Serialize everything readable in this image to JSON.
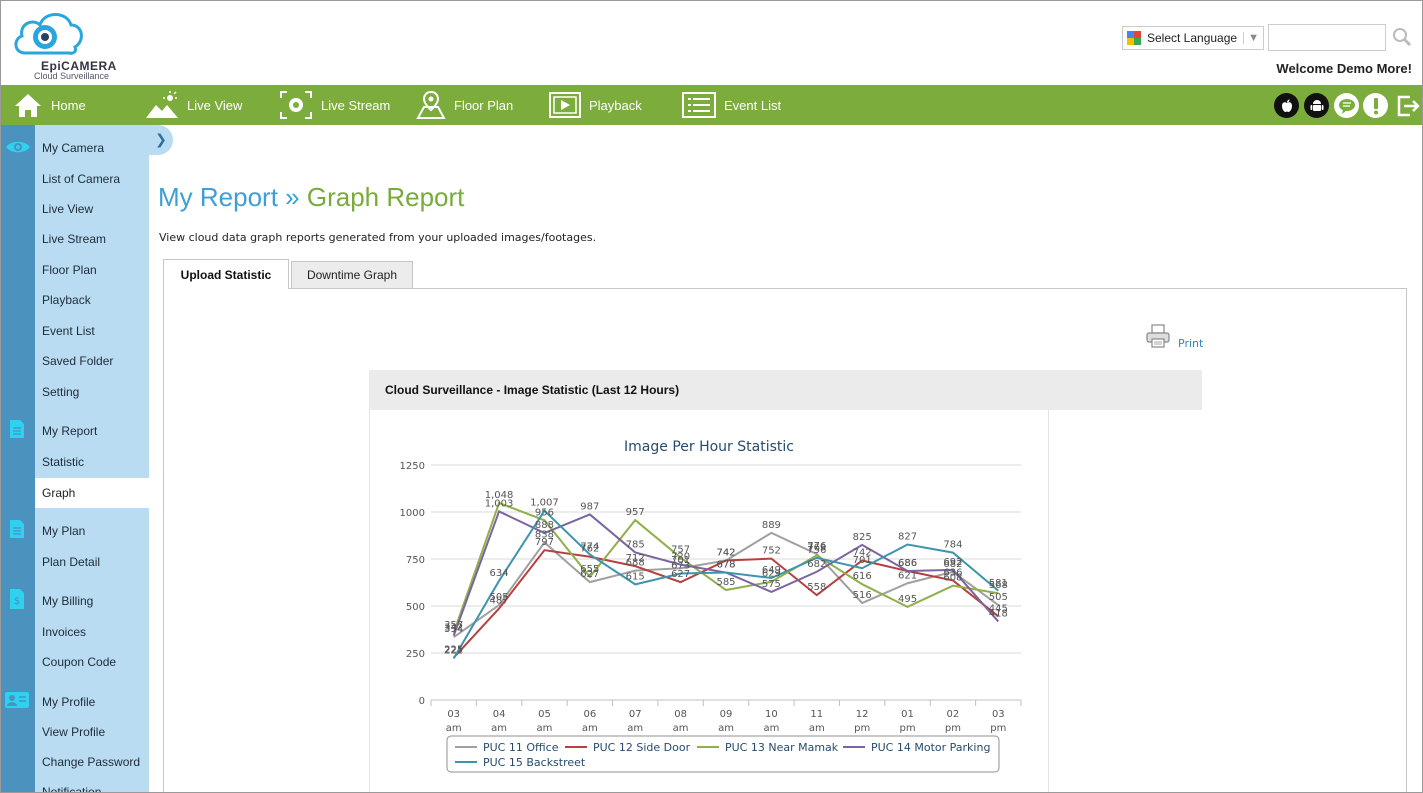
{
  "header": {
    "logo_brand": "EpiCAMERA",
    "logo_tagline": "Cloud Surveillance",
    "language_label": "Select Language",
    "welcome": "Welcome Demo More!"
  },
  "nav": {
    "items": [
      {
        "label": "Home",
        "icon": "home-icon"
      },
      {
        "label": "Live View",
        "icon": "live-view-icon"
      },
      {
        "label": "Live Stream",
        "icon": "live-stream-icon"
      },
      {
        "label": "Floor Plan",
        "icon": "floor-plan-icon"
      },
      {
        "label": "Playback",
        "icon": "playback-icon"
      },
      {
        "label": "Event List",
        "icon": "event-list-icon"
      }
    ],
    "right_icons": [
      "apple-icon",
      "android-icon",
      "chat-icon",
      "alert-icon",
      "logout-icon"
    ],
    "color": "#7cad3c"
  },
  "sidebar": {
    "items": [
      {
        "label": "My Camera"
      },
      {
        "label": "List of Camera"
      },
      {
        "label": "Live View"
      },
      {
        "label": "Live Stream"
      },
      {
        "label": "Floor Plan"
      },
      {
        "label": "Playback"
      },
      {
        "label": "Event List"
      },
      {
        "label": "Saved Folder"
      },
      {
        "label": "Setting"
      },
      {
        "label": "My Report"
      },
      {
        "label": "Statistic"
      },
      {
        "label": "Graph",
        "active": true
      },
      {
        "label": "My Plan"
      },
      {
        "label": "Plan Detail"
      },
      {
        "label": "My Billing"
      },
      {
        "label": "Invoices"
      },
      {
        "label": "Coupon Code"
      },
      {
        "label": "My Profile"
      },
      {
        "label": "View Profile"
      },
      {
        "label": "Change Password"
      },
      {
        "label": "Notification"
      }
    ],
    "collapse_glyph": "❯"
  },
  "main": {
    "title_part1": "My Report",
    "title_sep": "»",
    "title_part2": "Graph Report",
    "description": "View cloud data graph reports generated from your uploaded images/footages.",
    "tabs": [
      {
        "label": "Upload Statistic",
        "active": true
      },
      {
        "label": "Downtime Graph",
        "active": false
      }
    ],
    "print_label": "Print",
    "panel_title": "Cloud Surveillance - Image Statistic (Last 12 Hours)"
  },
  "chart_data": {
    "type": "line",
    "title": "Image Per Hour Statistic",
    "categories": [
      "03 am",
      "04 am",
      "05 am",
      "06 am",
      "07 am",
      "08 am",
      "09 am",
      "10 am",
      "11 am",
      "12 pm",
      "01 pm",
      "02 pm",
      "03 pm"
    ],
    "ylim": [
      0,
      1250
    ],
    "yticks": [
      0,
      250,
      500,
      750,
      1000,
      1250
    ],
    "grid": true,
    "legend_position": "bottom",
    "series": [
      {
        "name": "PUC 11 Office",
        "color": "#a0a0a0",
        "values": [
          334,
          505,
          838,
          627,
          688,
          701,
          742,
          889,
          776,
          516,
          621,
          682,
          505
        ]
      },
      {
        "name": "PUC 12 Side Door",
        "color": "#b5413f",
        "values": [
          225,
          487,
          797,
          762,
          712,
          627,
          742,
          752,
          558,
          742,
          686,
          636,
          445
        ]
      },
      {
        "name": "PUC 13 Near Mamak",
        "color": "#8fb04a",
        "values": [
          357,
          1048,
          956,
          655,
          957,
          757,
          585,
          629,
          769,
          616,
          495,
          608,
          568
        ]
      },
      {
        "name": "PUC 14 Motor Parking",
        "color": "#7b64a0",
        "values": [
          342,
          1003,
          888,
          987,
          785,
          720,
          678,
          575,
          682,
          825,
          686,
          692,
          418
        ]
      },
      {
        "name": "PUC 15 Backstreet",
        "color": "#3d95ad",
        "values": [
          221,
          634,
          1007,
          774,
          615,
          673,
          678,
          649,
          756,
          701,
          827,
          784,
          581
        ]
      }
    ]
  }
}
